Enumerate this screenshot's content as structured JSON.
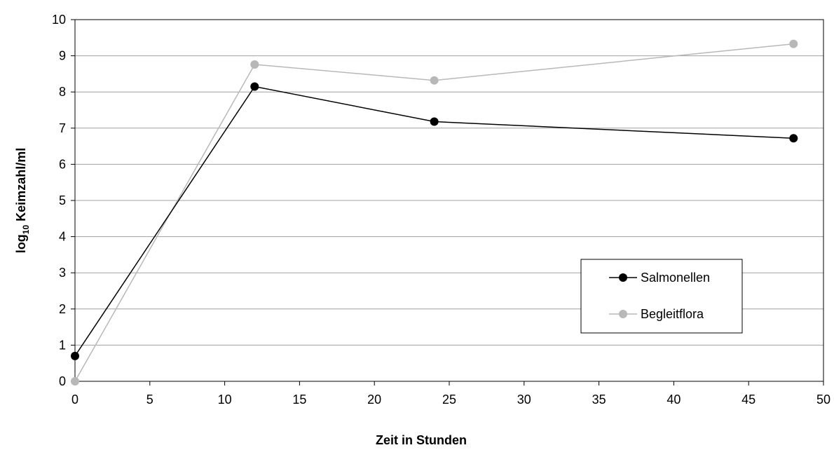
{
  "chart_data": {
    "type": "line",
    "title": "",
    "xlabel": "Zeit in Stunden",
    "ylabel_prefix": "log",
    "ylabel_sub": "10",
    "ylabel_suffix": " Keimzahl/ml",
    "xlim": [
      0,
      50
    ],
    "ylim": [
      0,
      10
    ],
    "x_ticks": [
      0,
      5,
      10,
      15,
      20,
      25,
      30,
      35,
      40,
      45,
      50
    ],
    "y_ticks": [
      0,
      1,
      2,
      3,
      4,
      5,
      6,
      7,
      8,
      9,
      10
    ],
    "grid": "horizontal",
    "legend_position": "lower-right",
    "series": [
      {
        "name": "Salmonellen",
        "color": "#000000",
        "x": [
          0,
          12,
          24,
          48
        ],
        "values": [
          0.7,
          8.15,
          7.18,
          6.72
        ]
      },
      {
        "name": "Begleitflora",
        "color": "#b8b8b8",
        "x": [
          0,
          12,
          24,
          48
        ],
        "values": [
          0.0,
          8.76,
          8.32,
          9.33
        ]
      }
    ]
  }
}
